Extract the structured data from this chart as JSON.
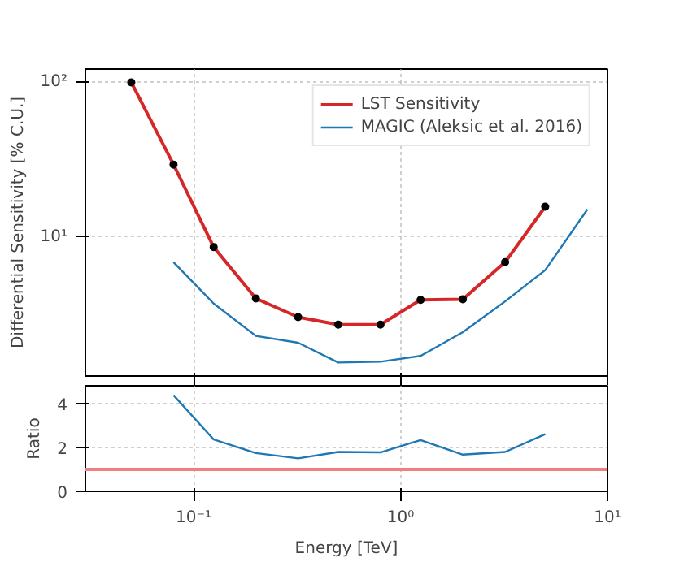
{
  "chart_data": [
    {
      "type": "line",
      "ylabel": "Differential Sensitivity [% C.U.]",
      "log": "xy",
      "grid": true,
      "legend": "top right",
      "tick_labels": "y",
      "xlim": [
        0.03,
        10
      ],
      "xticks": [
        {
          "value": 0.1,
          "label": null
        },
        {
          "value": 1,
          "label": null
        },
        {
          "value": 10,
          "label": null
        }
      ],
      "ylim": [
        1.26,
        122
      ],
      "yticks": [
        {
          "value": 10,
          "label": "10¹"
        },
        {
          "value": 100,
          "label": "10²"
        }
      ],
      "series": [
        {
          "name": "LST Sensitivity",
          "color": "#d62728",
          "marker": "circle",
          "x": [
            0.05,
            0.08,
            0.125,
            0.2,
            0.32,
            0.5,
            0.8,
            1.25,
            2,
            3.2,
            5
          ],
          "values": [
            100,
            29.4,
            8.6,
            4.0,
            3.03,
            2.71,
            2.71,
            3.92,
            3.95,
            6.87,
            15.7
          ]
        },
        {
          "name": "MAGIC (Aleksic et al. 2016)",
          "color": "#1f77b4",
          "marker": "none",
          "x": [
            0.08,
            0.125,
            0.2,
            0.32,
            0.5,
            0.8,
            1.25,
            2,
            3.2,
            5,
            8
          ],
          "values": [
            6.87,
            3.71,
            2.29,
            2.07,
            1.54,
            1.56,
            1.7,
            2.42,
            3.83,
            6.1,
            15.1
          ]
        }
      ]
    },
    {
      "type": "line",
      "xlabel": "Energy [TeV]",
      "ylabel": "Ratio",
      "log": "x",
      "grid": true,
      "xlim": [
        0.03,
        10
      ],
      "xticks": [
        {
          "value": 0.1,
          "label": "10⁻¹"
        },
        {
          "value": 1,
          "label": "10⁰"
        },
        {
          "value": 10,
          "label": "10¹"
        }
      ],
      "ylim": [
        0,
        4.8
      ],
      "yticks": [
        0,
        2,
        4
      ],
      "ref_lines": [
        {
          "axis": "y",
          "value": 1,
          "color": "#f08080"
        }
      ],
      "series": [
        {
          "color": "#1f77b4",
          "x": [
            0.08,
            0.125,
            0.2,
            0.32,
            0.5,
            0.8,
            1.25,
            2,
            3.2,
            5
          ],
          "values": [
            4.37,
            2.36,
            1.74,
            1.5,
            1.79,
            1.77,
            2.33,
            1.67,
            1.79,
            2.6
          ]
        }
      ]
    }
  ]
}
